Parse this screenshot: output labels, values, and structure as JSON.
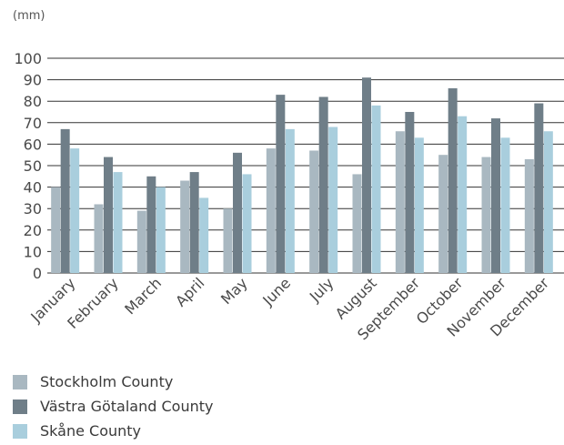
{
  "chart_data": {
    "type": "bar",
    "unit_label": "(mm)",
    "categories": [
      "January",
      "February",
      "March",
      "April",
      "May",
      "June",
      "July",
      "August",
      "September",
      "October",
      "November",
      "December"
    ],
    "series": [
      {
        "name": "Stockholm County",
        "color": "#a9b8c1",
        "values": [
          40,
          32,
          29,
          43,
          30,
          58,
          57,
          46,
          66,
          55,
          54,
          53
        ]
      },
      {
        "name": "Västra Götaland County",
        "color": "#6f7e88",
        "values": [
          67,
          54,
          45,
          47,
          56,
          83,
          82,
          91,
          75,
          86,
          72,
          79
        ]
      },
      {
        "name": "Skåne County",
        "color": "#a9cedd",
        "values": [
          58,
          47,
          40,
          35,
          46,
          67,
          68,
          78,
          63,
          73,
          63,
          66
        ]
      }
    ],
    "yticks": [
      0,
      10,
      20,
      30,
      40,
      50,
      60,
      70,
      80,
      90,
      100
    ],
    "ylim": [
      0,
      100
    ],
    "grid": true,
    "legend_position": "bottom-left"
  }
}
